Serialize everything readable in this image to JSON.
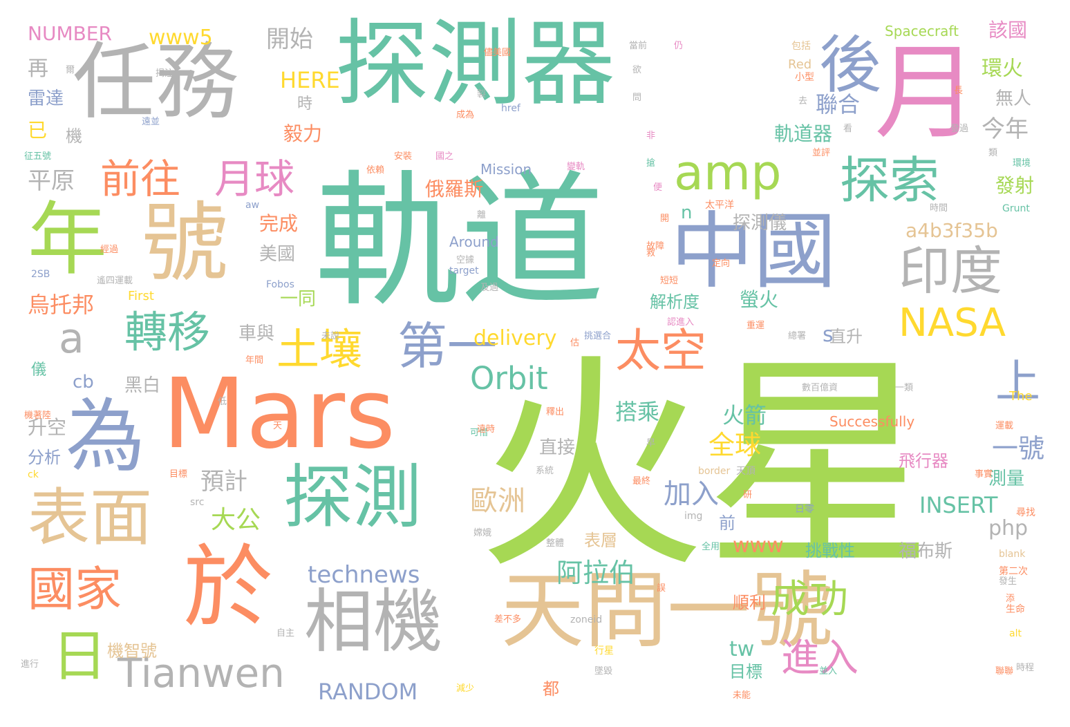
{
  "palette": {
    "green": "#a6d854",
    "teal": "#66c2a5",
    "orange": "#fc8d62",
    "blue": "#8da0cb",
    "pink": "#e78ac3",
    "yellow": "#ffd92f",
    "tan": "#e5c494",
    "gray": "#b3b3b3"
  },
  "words": [
    {
      "text": "火星",
      "color": "green",
      "weight": 100
    },
    {
      "text": "軌道",
      "color": "teal",
      "weight": 80
    },
    {
      "text": "探測器",
      "color": "teal",
      "weight": 60
    },
    {
      "text": "Mars",
      "color": "orange",
      "weight": 55
    },
    {
      "text": "任務",
      "color": "gray",
      "weight": 52
    },
    {
      "text": "天問一號",
      "color": "tan",
      "weight": 50
    },
    {
      "text": "中國",
      "color": "blue",
      "weight": 50
    },
    {
      "text": "於",
      "color": "orange",
      "weight": 50
    },
    {
      "text": "為",
      "color": "blue",
      "weight": 46
    },
    {
      "text": "年",
      "color": "green",
      "weight": 44
    },
    {
      "text": "號",
      "color": "tan",
      "weight": 44
    },
    {
      "text": "月",
      "color": "pink",
      "weight": 42
    },
    {
      "text": "相機",
      "color": "gray",
      "weight": 40
    },
    {
      "text": "探測",
      "color": "teal",
      "weight": 40
    },
    {
      "text": "表面",
      "color": "tan",
      "weight": 36
    },
    {
      "text": "後",
      "color": "blue",
      "weight": 33
    },
    {
      "text": "amp",
      "color": "green",
      "weight": 28
    },
    {
      "text": "探索",
      "color": "teal",
      "weight": 28
    },
    {
      "text": "印度",
      "color": "gray",
      "weight": 30
    },
    {
      "text": "國家",
      "color": "orange",
      "weight": 28
    },
    {
      "text": "日",
      "color": "green",
      "weight": 28
    },
    {
      "text": "Tianwen",
      "color": "gray",
      "weight": 22
    },
    {
      "text": "第一",
      "color": "blue",
      "weight": 28
    },
    {
      "text": "太空",
      "color": "orange",
      "weight": 26
    },
    {
      "text": "土壤",
      "color": "yellow",
      "weight": 24
    },
    {
      "text": "前往",
      "color": "orange",
      "weight": 22
    },
    {
      "text": "月球",
      "color": "pink",
      "weight": 22
    },
    {
      "text": "轉移",
      "color": "teal",
      "weight": 24
    },
    {
      "text": "a",
      "color": "gray",
      "weight": 22
    },
    {
      "text": "NASA",
      "color": "yellow",
      "weight": 22
    },
    {
      "text": "上",
      "color": "blue",
      "weight": 22
    },
    {
      "text": "成功",
      "color": "green",
      "weight": 20
    },
    {
      "text": "進入",
      "color": "pink",
      "weight": 20
    },
    {
      "text": "Orbit",
      "color": "teal",
      "weight": 18
    },
    {
      "text": "technews",
      "color": "blue",
      "weight": 14
    },
    {
      "text": "阿拉伯",
      "color": "teal",
      "weight": 14
    },
    {
      "text": "歐洲",
      "color": "tan",
      "weight": 14
    },
    {
      "text": "加入",
      "color": "blue",
      "weight": 14
    },
    {
      "text": "一號",
      "color": "blue",
      "weight": 14
    },
    {
      "text": "全球",
      "color": "yellow",
      "weight": 12
    },
    {
      "text": "火箭",
      "color": "teal",
      "weight": 10
    },
    {
      "text": "搭乘",
      "color": "teal",
      "weight": 10
    },
    {
      "text": "大公",
      "color": "green",
      "weight": 10
    },
    {
      "text": "預計",
      "color": "gray",
      "weight": 10
    },
    {
      "text": "烏托邦",
      "color": "orange",
      "weight": 10
    },
    {
      "text": "RANDOM",
      "color": "blue",
      "weight": 10
    },
    {
      "text": "tw",
      "color": "teal",
      "weight": 10
    },
    {
      "text": "INSERT",
      "color": "teal",
      "weight": 10
    },
    {
      "text": "php",
      "color": "gray",
      "weight": 10
    },
    {
      "text": "www",
      "color": "orange",
      "weight": 10
    },
    {
      "text": "a4b3f35b",
      "color": "tan",
      "weight": 9
    },
    {
      "text": "聯合",
      "color": "blue",
      "weight": 9
    },
    {
      "text": "今年",
      "color": "gray",
      "weight": 9
    },
    {
      "text": "環火",
      "color": "green",
      "weight": 8
    },
    {
      "text": "該國",
      "color": "pink",
      "weight": 8
    },
    {
      "text": "軌道器",
      "color": "teal",
      "weight": 8
    },
    {
      "text": "www5",
      "color": "yellow",
      "weight": 9
    },
    {
      "text": "開始",
      "color": "gray",
      "weight": 9
    },
    {
      "text": "再",
      "color": "gray",
      "weight": 8
    },
    {
      "text": "NUMBER",
      "color": "pink",
      "weight": 7
    },
    {
      "text": "HERE",
      "color": "yellow",
      "weight": 7
    },
    {
      "text": "雷達",
      "color": "blue",
      "weight": 7
    },
    {
      "text": "已",
      "color": "yellow",
      "weight": 7
    },
    {
      "text": "毅力",
      "color": "orange",
      "weight": 7
    },
    {
      "text": "平原",
      "color": "gray",
      "weight": 9
    },
    {
      "text": "俄羅斯",
      "color": "orange",
      "weight": 7
    },
    {
      "text": "發射",
      "color": "green",
      "weight": 7
    },
    {
      "text": "完成",
      "color": "orange",
      "weight": 7
    },
    {
      "text": "探測儀",
      "color": "gray",
      "weight": 7
    },
    {
      "text": "美國",
      "color": "gray",
      "weight": 7
    },
    {
      "text": "n",
      "color": "teal",
      "weight": 7
    },
    {
      "text": "s",
      "color": "blue",
      "weight": 7
    },
    {
      "text": "螢火",
      "color": "teal",
      "weight": 7
    },
    {
      "text": "解析度",
      "color": "teal",
      "weight": 7
    },
    {
      "text": "一同",
      "color": "green",
      "weight": 7
    },
    {
      "text": "車與",
      "color": "gray",
      "weight": 7
    },
    {
      "text": "delivery",
      "color": "yellow",
      "weight": 8
    },
    {
      "text": "直升",
      "color": "gray",
      "weight": 7
    },
    {
      "text": "cb",
      "color": "blue",
      "weight": 7
    },
    {
      "text": "黑白",
      "color": "gray",
      "weight": 7
    },
    {
      "text": "升空",
      "color": "gray",
      "weight": 7
    },
    {
      "text": "分析",
      "color": "blue",
      "weight": 6
    },
    {
      "text": "直接",
      "color": "gray",
      "weight": 6
    },
    {
      "text": "前",
      "color": "blue",
      "weight": 6
    },
    {
      "text": "表層",
      "color": "tan",
      "weight": 6
    },
    {
      "text": "挑戰性",
      "color": "teal",
      "weight": 6
    },
    {
      "text": "福布斯",
      "color": "gray",
      "weight": 6
    },
    {
      "text": "飛行器",
      "color": "pink",
      "weight": 6
    },
    {
      "text": "測量",
      "color": "teal",
      "weight": 6
    },
    {
      "text": "順利",
      "color": "orange",
      "weight": 5
    },
    {
      "text": "目標",
      "color": "teal",
      "weight": 5
    },
    {
      "text": "都",
      "color": "orange",
      "weight": 5
    },
    {
      "text": "機智號",
      "color": "tan",
      "weight": 5
    },
    {
      "text": "無人",
      "color": "gray",
      "weight": 5
    },
    {
      "text": "機",
      "color": "gray",
      "weight": 5
    },
    {
      "text": "時",
      "color": "gray",
      "weight": 5
    },
    {
      "text": "儀",
      "color": "teal",
      "weight": 5
    },
    {
      "text": "Mission",
      "color": "blue",
      "weight": 5
    },
    {
      "text": "Around",
      "color": "blue",
      "weight": 5
    },
    {
      "text": "Spacecraft",
      "color": "green",
      "weight": 5
    },
    {
      "text": "Successfully",
      "color": "orange",
      "weight": 5
    },
    {
      "text": "Red",
      "color": "tan",
      "weight": 4
    },
    {
      "text": "First",
      "color": "yellow",
      "weight": 4
    },
    {
      "text": "The",
      "color": "yellow",
      "weight": 4
    },
    {
      "text": "Fobos",
      "color": "blue",
      "weight": 3
    },
    {
      "text": "Grunt",
      "color": "teal",
      "weight": 3
    },
    {
      "text": "target",
      "color": "blue",
      "weight": 3
    },
    {
      "text": "href",
      "color": "blue",
      "weight": 3
    },
    {
      "text": "zoneid",
      "color": "gray",
      "weight": 3
    },
    {
      "text": "border",
      "color": "tan",
      "weight": 3
    },
    {
      "text": "blank",
      "color": "tan",
      "weight": 3
    },
    {
      "text": "img",
      "color": "gray",
      "weight": 3
    },
    {
      "text": "src",
      "color": "gray",
      "weight": 3
    },
    {
      "text": "alt",
      "color": "yellow",
      "weight": 3
    },
    {
      "text": "ck",
      "color": "yellow",
      "weight": 3
    },
    {
      "text": "aw",
      "color": "blue",
      "weight": 3
    },
    {
      "text": "2SB",
      "color": "blue",
      "weight": 3
    },
    {
      "text": "小型",
      "color": "orange",
      "weight": 3
    },
    {
      "text": "包括",
      "color": "tan",
      "weight": 3
    },
    {
      "text": "時間",
      "color": "gray",
      "weight": 3
    },
    {
      "text": "太平洋",
      "color": "orange",
      "weight": 3
    },
    {
      "text": "天頂",
      "color": "gray",
      "weight": 3
    },
    {
      "text": "日零",
      "color": "blue",
      "weight": 3
    },
    {
      "text": "行星",
      "color": "yellow",
      "weight": 3
    },
    {
      "text": "生命",
      "color": "orange",
      "weight": 3
    },
    {
      "text": "第二次",
      "color": "orange",
      "weight": 3
    },
    {
      "text": "尋找",
      "color": "orange",
      "weight": 3
    },
    {
      "text": "數百億資",
      "color": "gray",
      "weight": 3
    },
    {
      "text": "一類",
      "color": "gray",
      "weight": 3
    },
    {
      "text": "全用",
      "color": "teal",
      "weight": 3
    },
    {
      "text": "系統",
      "color": "gray",
      "weight": 3
    },
    {
      "text": "可惜",
      "color": "teal",
      "weight": 3
    },
    {
      "text": "目標",
      "color": "orange",
      "weight": 3
    },
    {
      "text": "低",
      "color": "gray",
      "weight": 3
    },
    {
      "text": "天",
      "color": "orange",
      "weight": 3
    },
    {
      "text": "早",
      "color": "gray",
      "weight": 3
    },
    {
      "text": "研",
      "color": "orange",
      "weight": 3
    },
    {
      "text": "年間",
      "color": "orange",
      "weight": 3
    },
    {
      "text": "嫦娥",
      "color": "gray",
      "weight": 3
    },
    {
      "text": "進行",
      "color": "gray",
      "weight": 3
    },
    {
      "text": "自主",
      "color": "gray",
      "weight": 3
    },
    {
      "text": "減少",
      "color": "yellow",
      "weight": 3
    },
    {
      "text": "差不多",
      "color": "orange",
      "weight": 3
    },
    {
      "text": "時程",
      "color": "gray",
      "weight": 3
    },
    {
      "text": "故障",
      "color": "orange",
      "weight": 3
    },
    {
      "text": "短短",
      "color": "orange",
      "weight": 3
    },
    {
      "text": "定向",
      "color": "orange",
      "weight": 3
    },
    {
      "text": "及過",
      "color": "gray",
      "weight": 3
    },
    {
      "text": "挑選合",
      "color": "blue",
      "weight": 3
    },
    {
      "text": "依賴",
      "color": "orange",
      "weight": 3
    },
    {
      "text": "安裝",
      "color": "orange",
      "weight": 3
    },
    {
      "text": "國之",
      "color": "pink",
      "weight": 3
    },
    {
      "text": "變軌",
      "color": "pink",
      "weight": 3
    },
    {
      "text": "環境",
      "color": "teal",
      "weight": 3
    },
    {
      "text": "發過",
      "color": "gray",
      "weight": 3
    },
    {
      "text": "長",
      "color": "orange",
      "weight": 3
    },
    {
      "text": "當前",
      "color": "gray",
      "weight": 3
    },
    {
      "text": "仍",
      "color": "pink",
      "weight": 3
    },
    {
      "text": "欲",
      "color": "gray",
      "weight": 3
    },
    {
      "text": "問",
      "color": "gray",
      "weight": 3
    },
    {
      "text": "非",
      "color": "pink",
      "weight": 3
    },
    {
      "text": "搶",
      "color": "teal",
      "weight": 3
    },
    {
      "text": "便",
      "color": "pink",
      "weight": 3
    },
    {
      "text": "開",
      "color": "orange",
      "weight": 3
    },
    {
      "text": "離",
      "color": "gray",
      "weight": 3
    },
    {
      "text": "救",
      "color": "orange",
      "weight": 3
    },
    {
      "text": "成為",
      "color": "orange",
      "weight": 3
    },
    {
      "text": "製",
      "color": "gray",
      "weight": 3
    },
    {
      "text": "儘美國",
      "color": "orange",
      "weight": 3
    },
    {
      "text": "去",
      "color": "gray",
      "weight": 3
    },
    {
      "text": "類",
      "color": "gray",
      "weight": 3
    },
    {
      "text": "並評",
      "color": "orange",
      "weight": 3
    },
    {
      "text": "看",
      "color": "gray",
      "weight": 3
    },
    {
      "text": "征五號",
      "color": "teal",
      "weight": 3
    },
    {
      "text": "遠並",
      "color": "blue",
      "weight": 3
    },
    {
      "text": "揭注",
      "color": "gray",
      "weight": 3
    },
    {
      "text": "爾",
      "color": "gray",
      "weight": 3
    },
    {
      "text": "遙四運載",
      "color": "gray",
      "weight": 3
    },
    {
      "text": "經過",
      "color": "orange",
      "weight": 3
    },
    {
      "text": "空據",
      "color": "gray",
      "weight": 3
    },
    {
      "text": "重運",
      "color": "orange",
      "weight": 3
    },
    {
      "text": "總署",
      "color": "gray",
      "weight": 3
    },
    {
      "text": "認進入",
      "color": "pink",
      "weight": 3
    },
    {
      "text": "未說",
      "color": "gray",
      "weight": 3
    },
    {
      "text": "估",
      "color": "orange",
      "weight": 3
    },
    {
      "text": "遠時",
      "color": "orange",
      "weight": 3
    },
    {
      "text": "釋出",
      "color": "orange",
      "weight": 3
    },
    {
      "text": "運載",
      "color": "orange",
      "weight": 3
    },
    {
      "text": "機著陸",
      "color": "orange",
      "weight": 3
    },
    {
      "text": "最終",
      "color": "orange",
      "weight": 3
    },
    {
      "text": "整體",
      "color": "gray",
      "weight": 3
    },
    {
      "text": "事實",
      "color": "orange",
      "weight": 3
    },
    {
      "text": "墜毀",
      "color": "gray",
      "weight": 3
    },
    {
      "text": "並入",
      "color": "teal",
      "weight": 3
    },
    {
      "text": "未能",
      "color": "orange",
      "weight": 3
    },
    {
      "text": "聯聯",
      "color": "orange",
      "weight": 3
    },
    {
      "text": "誤",
      "color": "orange",
      "weight": 3
    },
    {
      "text": "發生",
      "color": "gray",
      "weight": 3
    },
    {
      "text": "添",
      "color": "orange",
      "weight": 3
    }
  ]
}
